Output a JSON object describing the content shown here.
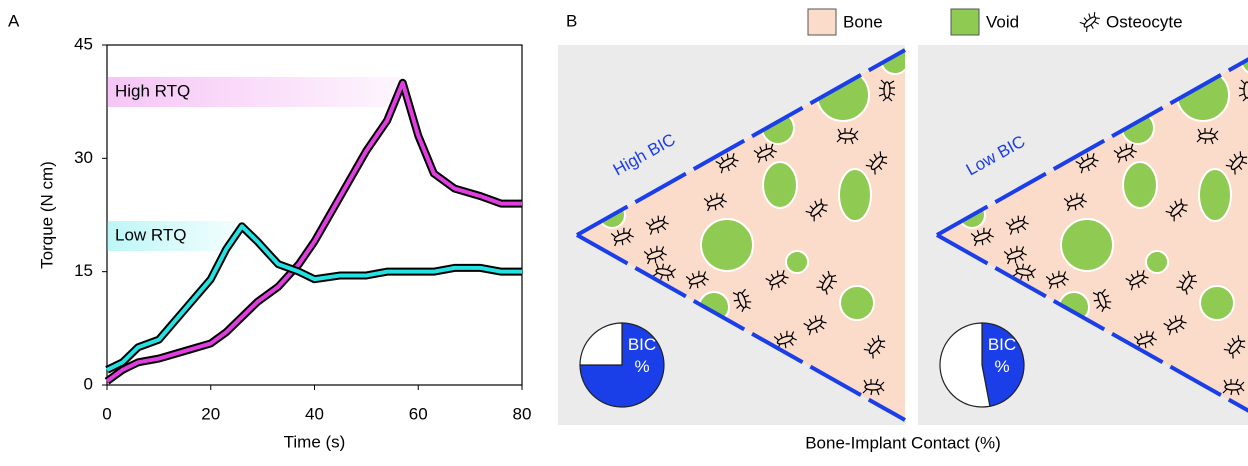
{
  "panels": {
    "a": "A",
    "b": "B"
  },
  "diagram": {
    "legend": [
      "Bone",
      "Void",
      "Osteocyte"
    ],
    "x_label": "Bone-Implant Contact (%)"
  },
  "chart_data": [
    {
      "type": "line",
      "x_label": "Time (s)",
      "y_label": "Torque (N cm)",
      "x": [
        0,
        3,
        6,
        10,
        15,
        20,
        23,
        26,
        29,
        33,
        37,
        40,
        45,
        50,
        54,
        57,
        60,
        63,
        67,
        72,
        76,
        80
      ],
      "series": [
        {
          "name": "High RTQ",
          "color": "#e03ee0",
          "values": [
            0.5,
            2,
            3,
            3.5,
            4.5,
            5.5,
            7,
            9,
            11,
            13,
            16,
            19,
            25,
            31,
            35,
            40,
            33,
            28,
            26,
            25,
            24,
            24
          ]
        },
        {
          "name": "Low RTQ",
          "color": "#22e2e2",
          "values": [
            2,
            3,
            5,
            6,
            10,
            14,
            18,
            21,
            19,
            16,
            15,
            14,
            14.5,
            14.5,
            15,
            15,
            15,
            15,
            15.5,
            15.5,
            15,
            15
          ]
        }
      ],
      "xlim": [
        0,
        80
      ],
      "xticks": [
        0,
        20,
        40,
        60,
        80
      ],
      "ylim": [
        0,
        45
      ],
      "yticks": [
        0,
        15,
        30,
        45
      ]
    },
    {
      "type": "pie",
      "title": "High BIC",
      "categories": [
        "BIC %",
        null
      ],
      "values": [
        75,
        25
      ],
      "colors": [
        "#1a3ee8",
        "#ffffff"
      ]
    },
    {
      "type": "pie",
      "title": "Low BIC",
      "categories": [
        "BIC %",
        null
      ],
      "values": [
        47,
        53
      ],
      "colors": [
        "#1a3ee8",
        "#ffffff"
      ]
    }
  ]
}
